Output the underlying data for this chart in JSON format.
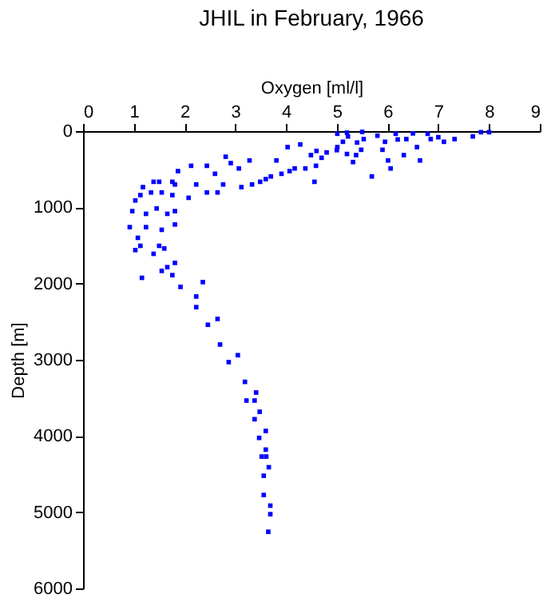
{
  "chart_data": {
    "type": "scatter",
    "title": "JHIL in February, 1966",
    "xlabel": "Oxygen [ml/l]",
    "ylabel": "Depth [m]",
    "xlim": [
      0,
      9
    ],
    "xticks": [
      0,
      1,
      2,
      3,
      4,
      5,
      6,
      7,
      8,
      9
    ],
    "ylim": [
      6000,
      0
    ],
    "yticks": [
      0,
      1000,
      2000,
      3000,
      4000,
      5000,
      6000
    ],
    "grid": false,
    "marker": "square",
    "series": [
      {
        "color": "#0000ff",
        "x": [
          8.0,
          7.84,
          7.68,
          7.32,
          7.11,
          6.79,
          6.85,
          6.64,
          6.58,
          6.37,
          6.32,
          6.16,
          6.06,
          6.01,
          5.95,
          5.9,
          5.69,
          5.53,
          5.48,
          5.38,
          5.32,
          5.22,
          5.12,
          5.01,
          5.01,
          4.8,
          4.7,
          4.59,
          4.56,
          4.49,
          4.38,
          4.28,
          4.17,
          4.07,
          4.03,
          3.91,
          3.81,
          3.7,
          3.6,
          3.49,
          3.33,
          3.28,
          3.12,
          3.07,
          2.91,
          2.81,
          2.76,
          2.65,
          2.6,
          2.44,
          2.44,
          2.23,
          2.13,
          2.08,
          1.87,
          1.81,
          1.76,
          1.76,
          1.55,
          1.5,
          1.39,
          1.34,
          1.18,
          1.13,
          1.03,
          0.97,
          1.24,
          1.45,
          1.66,
          1.81,
          1.81,
          1.55,
          1.24,
          0.92,
          1.08,
          1.5,
          1.6,
          1.13,
          1.03,
          1.39,
          1.81,
          1.66,
          1.55,
          1.76,
          1.16,
          1.92,
          2.36,
          2.23,
          2.23,
          2.65,
          2.46,
          2.7,
          3.05,
          2.87,
          3.19,
          3.41,
          3.38,
          3.22,
          3.48,
          3.38,
          3.6,
          3.47,
          3.6,
          3.52,
          3.61,
          3.66,
          3.56,
          3.56,
          3.69,
          3.69,
          3.65,
          5.2,
          5.5,
          5.8,
          6.2,
          6.5,
          7.0,
          5.4,
          5.0,
          4.6,
          5.2
        ],
        "values": [
          14,
          14,
          70,
          105,
          140,
          35,
          105,
          385,
          210,
          105,
          315,
          35,
          490,
          385,
          140,
          245,
          595,
          105,
          245,
          315,
          406,
          70,
          140,
          35,
          210,
          280,
          350,
          455,
          665,
          315,
          490,
          175,
          490,
          525,
          210,
          560,
          385,
          595,
          630,
          665,
          700,
          385,
          735,
          490,
          420,
          336,
          700,
          805,
          560,
          805,
          455,
          700,
          455,
          875,
          525,
          700,
          840,
          665,
          805,
          665,
          665,
          805,
          735,
          840,
          910,
          1050,
          1085,
          1015,
          1085,
          1050,
          1225,
          1295,
          1260,
          1260,
          1400,
          1505,
          1540,
          1505,
          1561,
          1610,
          1729,
          1785,
          1834,
          1890,
          1925,
          2044,
          1981,
          2170,
          2310,
          2464,
          2541,
          2800,
          2940,
          3031,
          3290,
          3430,
          3535,
          3535,
          3682,
          3780,
          3934,
          4025,
          4179,
          4270,
          4270,
          4410,
          4522,
          4774,
          4914,
          5026,
          5257,
          20,
          10,
          60,
          110,
          30,
          80,
          150,
          250,
          260,
          300
        ]
      }
    ]
  }
}
